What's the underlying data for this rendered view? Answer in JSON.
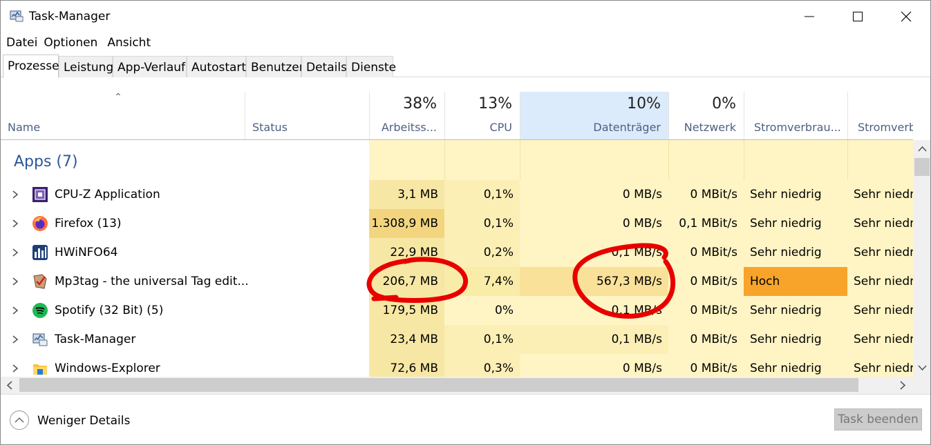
{
  "window": {
    "title": "Task-Manager",
    "app_icon": "task-manager-icon"
  },
  "menu": [
    "Datei",
    "Optionen",
    "Ansicht"
  ],
  "tabs": [
    "Prozesse",
    "Leistung",
    "App-Verlauf",
    "Autostart",
    "Benutzer",
    "Details",
    "Dienste"
  ],
  "active_tab": "Prozesse",
  "columns": {
    "name": "Name",
    "status": "Status",
    "memory": {
      "percent": "38%",
      "label": "Arbeitss..."
    },
    "cpu": {
      "percent": "13%",
      "label": "CPU"
    },
    "disk": {
      "percent": "10%",
      "label": "Datenträger"
    },
    "network": {
      "percent": "0%",
      "label": "Netzwerk"
    },
    "power": "Stromverbrau...",
    "power_trend": "Stromverbrau"
  },
  "group": {
    "title": "Apps (7)"
  },
  "rows": [
    {
      "name": "CPU-Z Application",
      "icon": "cpu-z-icon",
      "memory": "3,1 MB",
      "cpu": "0,1%",
      "disk": "0 MB/s",
      "network": "0 MBit/s",
      "power": "Sehr niedrig",
      "power_trend": "Sehr niedri"
    },
    {
      "name": "Firefox (13)",
      "icon": "firefox-icon",
      "memory": "1.308,9 MB",
      "cpu": "0,1%",
      "disk": "0 MB/s",
      "network": "0,1 MBit/s",
      "power": "Sehr niedrig",
      "power_trend": "Sehr niedri"
    },
    {
      "name": "HWiNFO64",
      "icon": "hwinfo-icon",
      "memory": "22,9 MB",
      "cpu": "0,2%",
      "disk": "0,1 MB/s",
      "network": "0 MBit/s",
      "power": "Sehr niedrig",
      "power_trend": "Sehr niedri"
    },
    {
      "name": "Mp3tag - the universal Tag edit...",
      "icon": "mp3tag-icon",
      "memory": "206,7 MB",
      "cpu": "7,4%",
      "disk": "567,3 MB/s",
      "network": "0 MBit/s",
      "power": "Hoch",
      "power_trend": "Sehr niedri"
    },
    {
      "name": "Spotify (32 Bit) (5)",
      "icon": "spotify-icon",
      "memory": "179,5 MB",
      "cpu": "0%",
      "disk": "0,1 MB/s",
      "network": "0 MBit/s",
      "power": "Sehr niedrig",
      "power_trend": "Sehr niedri"
    },
    {
      "name": "Task-Manager",
      "icon": "task-manager-icon",
      "memory": "23,4 MB",
      "cpu": "0,1%",
      "disk": "0,1 MB/s",
      "network": "0 MBit/s",
      "power": "Sehr niedrig",
      "power_trend": "Sehr niedri"
    },
    {
      "name": "Windows-Explorer",
      "icon": "folder-icon",
      "memory": "72,6 MB",
      "cpu": "0,3%",
      "disk": "0 MB/s",
      "network": "0 MBit/s",
      "power": "Sehr niedrig",
      "power_trend": "Sehr niedri"
    }
  ],
  "footer": {
    "fewer_details": "Weniger Details",
    "end_task": "Task beenden"
  },
  "colors": {
    "heat_low": "#fff4c4",
    "heat_mid": "#f9eca8",
    "heat_high": "#f3d580",
    "power_high": "#f8a42b",
    "group_title": "#2b579a",
    "sorted_header": "#dcebfb",
    "annotation": "#e80000"
  }
}
